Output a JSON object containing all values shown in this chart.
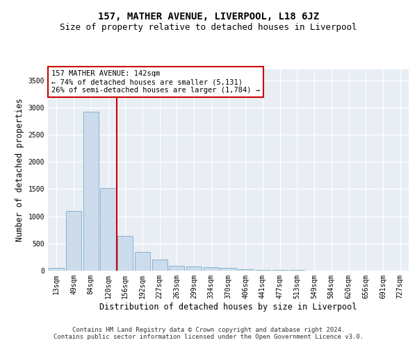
{
  "title": "157, MATHER AVENUE, LIVERPOOL, L18 6JZ",
  "subtitle": "Size of property relative to detached houses in Liverpool",
  "xlabel": "Distribution of detached houses by size in Liverpool",
  "ylabel": "Number of detached properties",
  "categories": [
    "13sqm",
    "49sqm",
    "84sqm",
    "120sqm",
    "156sqm",
    "192sqm",
    "227sqm",
    "263sqm",
    "299sqm",
    "334sqm",
    "370sqm",
    "406sqm",
    "441sqm",
    "477sqm",
    "513sqm",
    "549sqm",
    "584sqm",
    "620sqm",
    "656sqm",
    "691sqm",
    "727sqm"
  ],
  "values": [
    50,
    1100,
    2920,
    1520,
    640,
    340,
    210,
    95,
    75,
    60,
    45,
    30,
    18,
    12,
    8,
    5,
    3,
    2,
    1,
    0,
    0
  ],
  "bar_color": "#ccdcec",
  "bar_edge_color": "#7aaac8",
  "vline_color": "#cc0000",
  "vline_x": 3.5,
  "annotation_text": "157 MATHER AVENUE: 142sqm\n← 74% of detached houses are smaller (5,131)\n26% of semi-detached houses are larger (1,784) →",
  "annotation_box_facecolor": "#ffffff",
  "annotation_box_edgecolor": "#cc0000",
  "ylim": [
    0,
    3700
  ],
  "yticks": [
    0,
    500,
    1000,
    1500,
    2000,
    2500,
    3000,
    3500
  ],
  "background_color": "#ffffff",
  "plot_background_color": "#e8eef4",
  "grid_color": "#ffffff",
  "title_fontsize": 10,
  "subtitle_fontsize": 9,
  "axis_label_fontsize": 8.5,
  "tick_fontsize": 7,
  "annotation_fontsize": 7.5,
  "footer_fontsize": 6.5,
  "footer_text": "Contains HM Land Registry data © Crown copyright and database right 2024.\nContains public sector information licensed under the Open Government Licence v3.0."
}
